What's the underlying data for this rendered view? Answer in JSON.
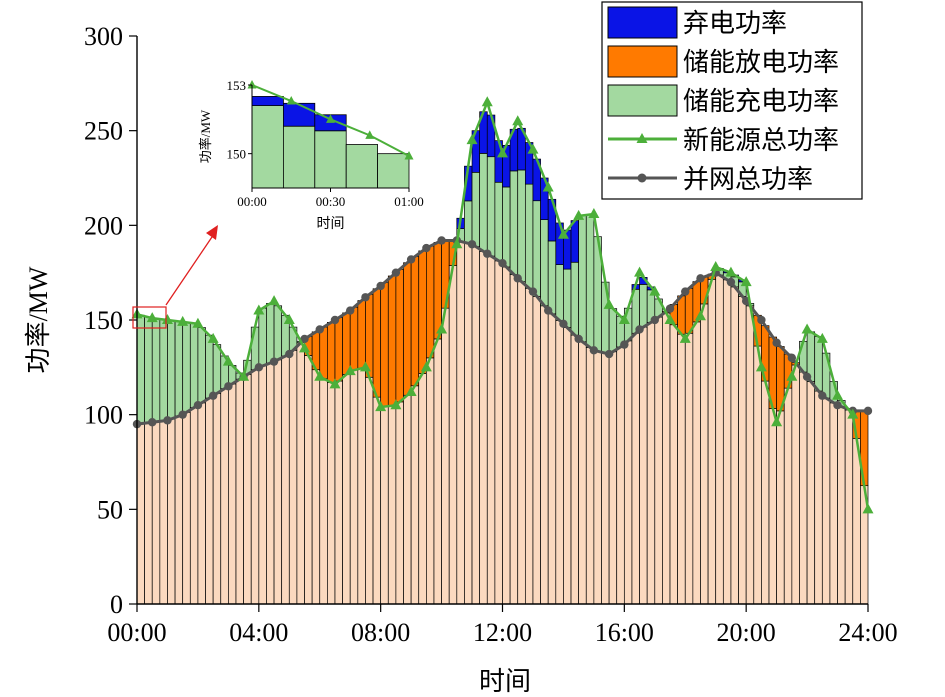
{
  "chart_data": {
    "type": "bar",
    "xlabel": "时间",
    "ylabel": "功率/MW",
    "xlim": [
      0,
      24
    ],
    "ylim": [
      0,
      300
    ],
    "x_ticks": [
      "00:00",
      "04:00",
      "08:00",
      "12:00",
      "16:00",
      "20:00",
      "24:00"
    ],
    "y_ticks": [
      0,
      50,
      100,
      150,
      200,
      250,
      300
    ],
    "legend_position": "top-right",
    "colors": {
      "curtail": "#0A14E6",
      "discharge": "#FF7A00",
      "charge": "#A3D9A0",
      "grid_fill": "#FBD9BF",
      "newenergy": "#4CAF3A",
      "grid_line": "#555555",
      "inset_box": "#E02020",
      "arrow": "#E02020"
    },
    "legend": [
      {
        "key": "curtail",
        "label": "弃电功率",
        "kind": "patch"
      },
      {
        "key": "discharge",
        "label": "储能放电功率",
        "kind": "patch"
      },
      {
        "key": "charge",
        "label": "储能充电功率",
        "kind": "patch"
      },
      {
        "key": "newenergy",
        "label": "新能源总功率",
        "kind": "line-triangle"
      },
      {
        "key": "grid_line",
        "label": "并网总功率",
        "kind": "line-circle"
      }
    ],
    "hour_grid": [
      0,
      0.5,
      1,
      1.5,
      2,
      2.5,
      3,
      3.5,
      4,
      4.5,
      5,
      5.5,
      6,
      6.5,
      7,
      7.5,
      8,
      8.5,
      9,
      9.5,
      10,
      10.5,
      11,
      11.5,
      12,
      12.5,
      13,
      13.5,
      14,
      14.5,
      15,
      15.5,
      16,
      16.5,
      17,
      17.5,
      18,
      18.5,
      19,
      19.5,
      20,
      20.5,
      21,
      21.5,
      22,
      22.5,
      23,
      23.5,
      24
    ],
    "new_energy_total": [
      153,
      151,
      150,
      149,
      148,
      140,
      128,
      120,
      155,
      160,
      150,
      135,
      120,
      116,
      123,
      125,
      104,
      105,
      112,
      125,
      145,
      190,
      245,
      265,
      238,
      255,
      240,
      220,
      195,
      205,
      206,
      158,
      150,
      175,
      165,
      150,
      140,
      152,
      178,
      175,
      170,
      125,
      96,
      120,
      145,
      140,
      110,
      100,
      50
    ],
    "grid_total": [
      95,
      96,
      97,
      100,
      105,
      110,
      115,
      120,
      125,
      128,
      132,
      140,
      145,
      150,
      155,
      162,
      168,
      175,
      182,
      188,
      192,
      192,
      190,
      185,
      180,
      172,
      165,
      155,
      148,
      140,
      134,
      132,
      137,
      145,
      150,
      156,
      165,
      172,
      175,
      170,
      160,
      150,
      138,
      130,
      120,
      110,
      105,
      102,
      102
    ],
    "inset": {
      "ylim": [
        148.5,
        153
      ],
      "y_ticks": [
        150,
        153
      ],
      "x_ticks": [
        "00:00",
        "00:30",
        "01:00"
      ],
      "xlabel": "时间",
      "ylabel": "功率/MW",
      "bar_tops": [
        152.5,
        152.2,
        151.7,
        150.4,
        150.0
      ],
      "bar_greens": [
        152.1,
        151.2,
        151.0,
        150.4,
        150.0
      ],
      "line_x": [
        0,
        0.25,
        0.5,
        0.75,
        1.0
      ],
      "line_y": [
        153,
        152.3,
        151.5,
        150.8,
        149.9
      ]
    }
  }
}
